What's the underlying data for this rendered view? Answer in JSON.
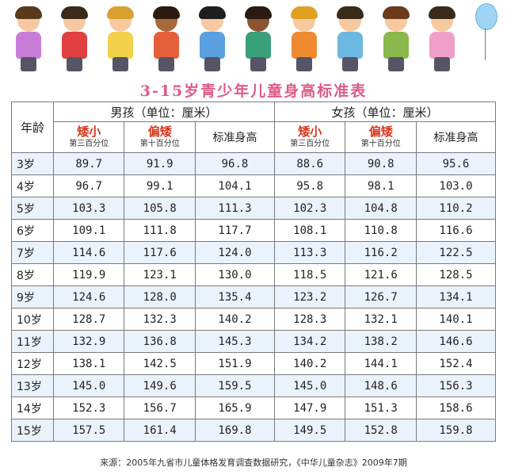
{
  "title": "3-15岁青少年儿童身高标准表",
  "header": {
    "age": "年龄",
    "boys": "男孩（单位：厘米）",
    "girls": "女孩（单位：厘米）",
    "short": "矮小",
    "short_sub": "第三百分位",
    "below": "偏矮",
    "below_sub": "第十百分位",
    "standard": "标准身高"
  },
  "rows": [
    [
      "3岁",
      "89.7",
      "91.9",
      "96.8",
      "88.6",
      "90.8",
      "95.6"
    ],
    [
      "4岁",
      "96.7",
      "99.1",
      "104.1",
      "95.8",
      "98.1",
      "103.0"
    ],
    [
      "5岁",
      "103.3",
      "105.8",
      "111.3",
      "102.3",
      "104.8",
      "110.2"
    ],
    [
      "6岁",
      "109.1",
      "111.8",
      "117.7",
      "108.1",
      "110.8",
      "116.6"
    ],
    [
      "7岁",
      "114.6",
      "117.6",
      "124.0",
      "113.3",
      "116.2",
      "122.5"
    ],
    [
      "8岁",
      "119.9",
      "123.1",
      "130.0",
      "118.5",
      "121.6",
      "128.5"
    ],
    [
      "9岁",
      "124.6",
      "128.0",
      "135.4",
      "123.2",
      "126.7",
      "134.1"
    ],
    [
      "10岁",
      "128.7",
      "132.3",
      "140.2",
      "128.3",
      "132.1",
      "140.1"
    ],
    [
      "11岁",
      "132.9",
      "136.8",
      "145.3",
      "134.2",
      "138.2",
      "146.6"
    ],
    [
      "12岁",
      "138.1",
      "142.5",
      "151.9",
      "140.2",
      "144.1",
      "152.4"
    ],
    [
      "13岁",
      "145.0",
      "149.6",
      "159.5",
      "145.0",
      "148.6",
      "156.3"
    ],
    [
      "14岁",
      "152.3",
      "156.7",
      "165.9",
      "147.9",
      "151.3",
      "158.6"
    ],
    [
      "15岁",
      "157.5",
      "161.4",
      "169.8",
      "149.5",
      "152.8",
      "159.8"
    ]
  ],
  "source": "来源：2005年九省市儿童体格发育调查数据研究，《中华儿童杂志》2009年7期",
  "colors": {
    "title": "#e05a8a",
    "category_label": "#d9361c",
    "stripe": "#eaf3fc"
  },
  "illustration": {
    "kids": [
      {
        "hair": "#5a3a1c",
        "shirt": "#c77dd8",
        "skin": "#f7c9a0"
      },
      {
        "hair": "#3a2a1a",
        "shirt": "#e04040",
        "skin": "#f7c9a0"
      },
      {
        "hair": "#d8a030",
        "shirt": "#f2d24a",
        "skin": "#f7c9a0"
      },
      {
        "hair": "#2a1a10",
        "shirt": "#e5603a",
        "skin": "#a86a3c"
      },
      {
        "hair": "#1e1e1e",
        "shirt": "#5aa0e0",
        "skin": "#f7c9a0"
      },
      {
        "hair": "#2a1a10",
        "shirt": "#3aa07a",
        "skin": "#8a5530"
      },
      {
        "hair": "#e0a020",
        "shirt": "#ef8a30",
        "skin": "#f7c9a0"
      },
      {
        "hair": "#3a2a1a",
        "shirt": "#6cb8e0",
        "skin": "#f7c9a0"
      },
      {
        "hair": "#6a3a1a",
        "shirt": "#8ab84a",
        "skin": "#f7c9a0"
      },
      {
        "hair": "#3a2a1a",
        "shirt": "#f0a0c8",
        "skin": "#f7c9a0"
      }
    ]
  }
}
